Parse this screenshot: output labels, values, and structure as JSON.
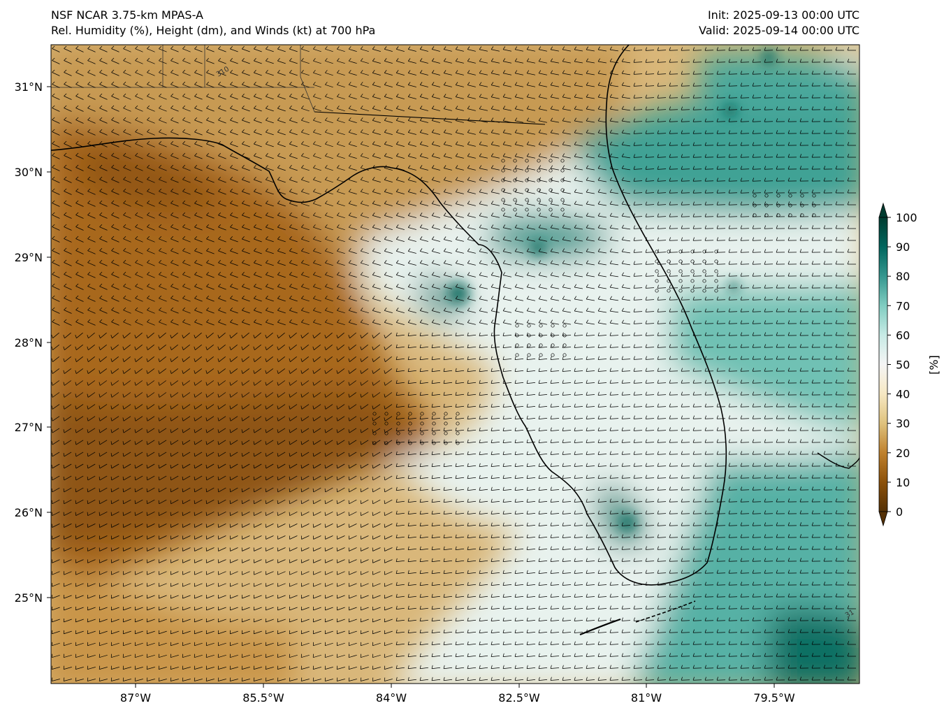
{
  "header": {
    "model": "NSF NCAR 3.75-km MPAS-A",
    "fields": "Rel. Humidity (%), Height (dm), and Winds (kt) at 700 hPa",
    "init": "Init: 2025-09-13 00:00 UTC",
    "valid": "Valid: 2025-09-14 00:00 UTC"
  },
  "map": {
    "lon_ticks": [
      "87°W",
      "85.5°W",
      "84°W",
      "82.5°W",
      "81°W",
      "79.5°W"
    ],
    "lat_ticks": [
      "31°N",
      "30°N",
      "29°N",
      "28°N",
      "27°N",
      "26°N",
      "25°N"
    ],
    "contour_labels": [
      "310",
      "31"
    ]
  },
  "colorbar": {
    "label": "[%]",
    "ticks": [
      "100",
      "90",
      "80",
      "70",
      "60",
      "50",
      "40",
      "30",
      "20",
      "10",
      "0"
    ],
    "colors": [
      "#543005",
      "#8c510a",
      "#bf812d",
      "#dfc27d",
      "#f6e8c3",
      "#f5f5f5",
      "#c7eae5",
      "#80cdc1",
      "#35978f",
      "#01665e",
      "#003c30"
    ]
  },
  "colors": {
    "coastline": "#000000",
    "barb": "#000000"
  }
}
